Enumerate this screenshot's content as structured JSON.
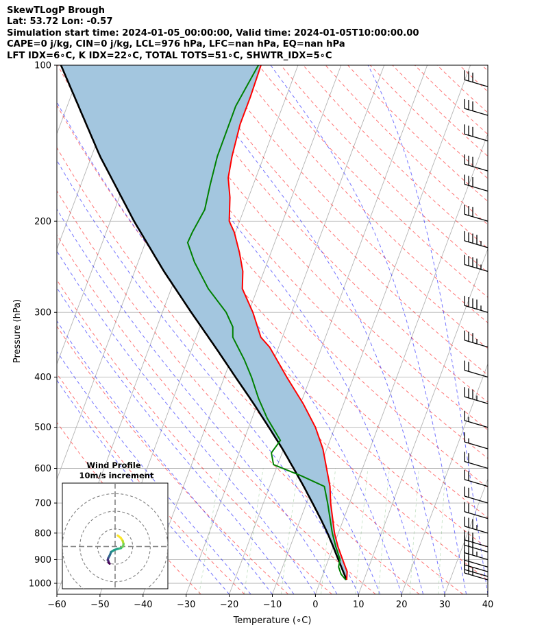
{
  "header": {
    "line1": "SkewTLogP Brough",
    "line2": "Lat: 53.72   Lon: -0.57",
    "line3": "Simulation start time: 2024-01-05_00:00:00, Valid time: 2024-01-05T10:00:00.00",
    "line4": "CAPE=0 j/kg, CIN=0 j/kg, LCL=976 hPa, LFC=nan hPa, EQ=nan hPa",
    "line5": "LFT IDX=6∘C, K IDX=22∘C, TOTAL TOTS=51∘C, SHWTR_IDX=5∘C"
  },
  "chart_data": {
    "type": "line",
    "skew_deg_per_decade": 45,
    "xlabel": "Temperature (∘C)",
    "ylabel": "Pressure (hPa)",
    "xlim": [
      -60,
      40
    ],
    "ylim": [
      1050,
      100
    ],
    "y_scale": "log",
    "grid": true,
    "x_ticks": [
      -60,
      -50,
      -40,
      -30,
      -20,
      -10,
      0,
      10,
      20,
      30,
      40
    ],
    "x_tick_labels": [
      "−60",
      "−50",
      "−40",
      "−30",
      "−20",
      "−10",
      "0",
      "10",
      "20",
      "30",
      "40"
    ],
    "y_ticks": [
      1000,
      900,
      800,
      700,
      600,
      500,
      400,
      300,
      200,
      100
    ],
    "y_tick_labels": [
      "1000",
      "900",
      "800",
      "700",
      "600",
      "500",
      "400",
      "300",
      "200",
      "100"
    ],
    "series": [
      {
        "color": "#ff0000",
        "pressure": [
          985,
          950,
          900,
          850,
          800,
          700,
          650,
          550,
          500,
          450,
          400,
          350,
          335,
          300,
          270,
          250,
          230,
          210,
          200,
          180,
          165,
          150,
          130,
          115,
          100
        ],
        "temperature": [
          6.0,
          5.4,
          3.3,
          1.1,
          -0.9,
          -4.4,
          -6.0,
          -10.9,
          -14.5,
          -19.4,
          -25.5,
          -32.1,
          -35.0,
          -39.0,
          -43.5,
          -44.9,
          -47.3,
          -50.3,
          -52.4,
          -54.3,
          -56.4,
          -57.4,
          -58.3,
          -58.3,
          -58.6
        ]
      },
      {
        "color": "#008000",
        "pressure": [
          985,
          960,
          930,
          900,
          850,
          800,
          700,
          650,
          620,
          590,
          560,
          530,
          480,
          440,
          400,
          370,
          335,
          320,
          300,
          270,
          240,
          220,
          210,
          190,
          170,
          150,
          120,
          100
        ],
        "temperature": [
          5.8,
          4.2,
          3.0,
          2.7,
          0.6,
          -1.4,
          -5.1,
          -7.3,
          -13.6,
          -21.0,
          -22.5,
          -21.5,
          -26.5,
          -30.2,
          -33.7,
          -36.9,
          -41.5,
          -42.4,
          -45.2,
          -51.4,
          -56.9,
          -60.2,
          -60.0,
          -59.1,
          -60.0,
          -60.8,
          -60.9,
          -59.2
        ]
      }
    ],
    "parcel_profile": {
      "color": "#000000",
      "pressure": [
        985,
        950,
        900,
        850,
        800,
        750,
        700,
        650,
        600,
        550,
        500,
        450,
        400,
        350,
        300,
        250,
        200,
        150,
        100
      ],
      "temperature": [
        6.0,
        4.5,
        2.3,
        0.0,
        -2.5,
        -5.4,
        -8.6,
        -12.1,
        -16.0,
        -20.3,
        -25.3,
        -30.9,
        -37.4,
        -44.7,
        -53.3,
        -63.2,
        -74.5,
        -88.0,
        -105.0
      ]
    },
    "shaded_region": "between parcel profile and temperature",
    "shade_color": "#a3c6df",
    "wind_barbs": {
      "pressure": [
        985,
        970,
        950,
        930,
        900,
        870,
        850,
        800,
        750,
        700,
        650,
        600,
        550,
        500,
        450,
        400,
        350,
        300,
        250,
        225,
        200,
        175,
        160,
        140,
        125,
        110
      ],
      "speed_kt": [
        15,
        15,
        20,
        20,
        25,
        30,
        30,
        25,
        20,
        20,
        20,
        20,
        5,
        5,
        25,
        20,
        25,
        35,
        35,
        35,
        30,
        30,
        30,
        30,
        30,
        30
      ]
    },
    "hodograph": {
      "title": "Wind Profile",
      "subtitle": "10m/s increment",
      "ring_increment_ms": 10,
      "u_ms": [
        1.5,
        3.2,
        4.3,
        4.8,
        4.5,
        3.3,
        1.4,
        -0.6,
        -2.3,
        -2.8,
        -3.3,
        -3.9,
        -4.2,
        -3.8,
        -3.6,
        -3.1
      ],
      "v_ms": [
        5.2,
        4.1,
        2.7,
        1.2,
        0.1,
        -0.8,
        -1.1,
        -1.7,
        -2.6,
        -3.7,
        -4.6,
        -5.5,
        -6.4,
        -6.9,
        -7.7,
        -8.1
      ],
      "x_range_ms": [
        -30,
        30
      ],
      "y_range_ms": [
        -20,
        30
      ]
    }
  }
}
